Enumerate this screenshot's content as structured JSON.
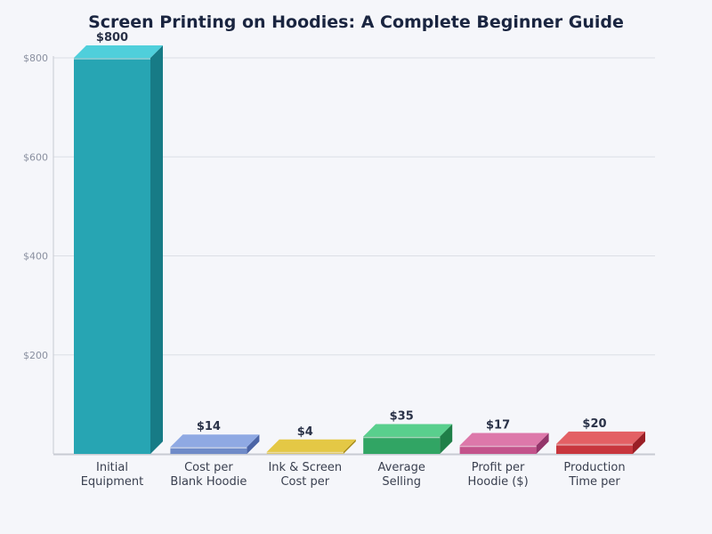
{
  "chart_data": {
    "type": "bar",
    "title": "Screen Printing on Hoodies: A Complete Beginner Guide",
    "xlabel": "",
    "ylabel": "",
    "ylim": [
      0,
      800
    ],
    "yticks": [
      200,
      400,
      600,
      800
    ],
    "ytick_labels": [
      "$200",
      "$400",
      "$600",
      "$800"
    ],
    "grid": true,
    "legend": null,
    "style": "3d-bar",
    "categories": [
      "Initial Equipment",
      "Cost per Blank Hoodie",
      "Ink & Screen Cost per",
      "Average Selling",
      "Profit per Hoodie ($)",
      "Production Time per"
    ],
    "category_lines": [
      [
        "Initial",
        "Equipment"
      ],
      [
        "Cost per",
        "Blank Hoodie"
      ],
      [
        "Ink & Screen",
        "Cost per"
      ],
      [
        "Average",
        "Selling"
      ],
      [
        "Profit per",
        "Hoodie ($)"
      ],
      [
        "Production",
        "Time per"
      ]
    ],
    "values": [
      800,
      14,
      4,
      35,
      17,
      20
    ],
    "value_labels": [
      "$800",
      "$14",
      "$4",
      "$35",
      "$17",
      "$20"
    ],
    "colors": {
      "front": [
        "#27a5b3",
        "#6f8bc8",
        "#d2b433",
        "#31a564",
        "#c3538b",
        "#c8363d"
      ],
      "top": [
        "#4fcfdb",
        "#8fa9e3",
        "#e4c845",
        "#59cf8d",
        "#dd78aa",
        "#e36064"
      ],
      "side": [
        "#177b86",
        "#4b64a6",
        "#a88c17",
        "#1f7f48",
        "#93356a",
        "#9a1f26"
      ]
    }
  },
  "axis": {
    "color": "#c8cbd3",
    "grid_color": "#dcdfe6"
  }
}
